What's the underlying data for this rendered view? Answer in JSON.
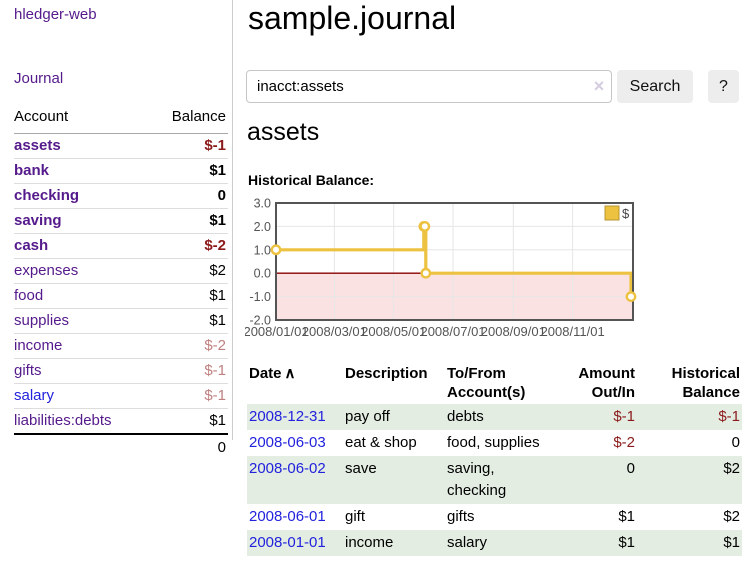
{
  "colors": {
    "purple": "#551A8B",
    "blue": "#2222DD",
    "neg": "#8B1A1A",
    "negfaded": "#C08080",
    "rowgreen": "#E3EDE2",
    "chart_gold": "#EDC240",
    "chart_gold_border": "#B89530",
    "chart_negative_fill": "#FBE2E2",
    "chart_zero_line": "#8B0000",
    "chart_grid": "#E6E6E6",
    "chart_border": "#545454",
    "chart_text": "#545454"
  },
  "sidebar": {
    "brand": "hledger-web",
    "journal_link": "Journal",
    "accounts_table": {
      "headers": {
        "account": "Account",
        "balance": "Balance"
      },
      "rows": [
        {
          "name": "assets",
          "depth": 1,
          "bold": true,
          "balance": "$-1",
          "balance_style": "neg-strong"
        },
        {
          "name": "bank",
          "depth": 2,
          "bold": true,
          "balance": "$1",
          "balance_style": "bold"
        },
        {
          "name": "checking",
          "depth": 3,
          "bold": true,
          "balance": "0",
          "balance_style": "bold"
        },
        {
          "name": "saving",
          "depth": 3,
          "bold": true,
          "balance": "$1",
          "balance_style": "bold"
        },
        {
          "name": "cash",
          "depth": 2,
          "bold": true,
          "balance": "$-2",
          "balance_style": "neg-strong"
        },
        {
          "name": "expenses",
          "depth": 1,
          "bold": false,
          "balance": "$2",
          "balance_style": "plain"
        },
        {
          "name": "food",
          "depth": 2,
          "bold": false,
          "balance": "$1",
          "balance_style": "plain"
        },
        {
          "name": "supplies",
          "depth": 2,
          "bold": false,
          "balance": "$1",
          "balance_style": "plain"
        },
        {
          "name": "income",
          "depth": 1,
          "bold": false,
          "balance": "$-2",
          "balance_style": "neg-faded"
        },
        {
          "name": "gifts",
          "depth": 2,
          "bold": false,
          "balance": "$-1",
          "balance_style": "neg-faded"
        },
        {
          "name": "salary",
          "depth": 2,
          "bold": false,
          "balance": "$-1",
          "balance_style": "neg-faded",
          "link_color": "blue"
        },
        {
          "name": "liabilities:debts",
          "depth": 1,
          "bold": false,
          "balance": "$1",
          "balance_style": "plain"
        }
      ],
      "total": "0"
    }
  },
  "main": {
    "title": "sample.journal",
    "search": {
      "value": "inacct:assets",
      "clear_icon": "×",
      "button_label": "Search",
      "help_label": "?"
    },
    "account_heading": "assets",
    "chart_heading": "Historical Balance:"
  },
  "chart_data": {
    "type": "line",
    "step": true,
    "title": "Historical Balance:",
    "series": [
      {
        "name": "$",
        "color": "#EDC240",
        "points": [
          [
            "2008-01-01",
            1
          ],
          [
            "2008-06-01",
            2
          ],
          [
            "2008-06-02",
            2
          ],
          [
            "2008-06-03",
            0
          ],
          [
            "2008-12-31",
            -1
          ]
        ]
      }
    ],
    "xrange": [
      "2008-01-01",
      "2008-12-31"
    ],
    "ylim": [
      -2,
      3
    ],
    "yticks": [
      3,
      2,
      1,
      0,
      -1,
      -2
    ],
    "ytick_labels": [
      "3.0",
      "2.0",
      "1.0",
      "0.0",
      "-1.0",
      "-2.0"
    ],
    "xticks": [
      "2008/01/01",
      "2008/03/01",
      "2008/05/01",
      "2008/07/01",
      "2008/09/01",
      "2008/11/01"
    ],
    "grid": true,
    "legend": {
      "label": "$",
      "position": "top-right"
    },
    "negative_region": {
      "from": -2,
      "to": 0,
      "color": "#FBE2E2"
    },
    "zero_line_color": "#8B0000"
  },
  "table": {
    "sort_icon": "∧",
    "headers": [
      "Date",
      "Description",
      "To/From Account(s)",
      "Amount Out/In",
      "Historical Balance"
    ],
    "rows": [
      {
        "date": "2008-12-31",
        "description": "pay off",
        "accounts": "debts",
        "amount": "$-1",
        "amount_neg": true,
        "balance": "$-1",
        "balance_neg": true
      },
      {
        "date": "2008-06-03",
        "description": "eat & shop",
        "accounts": "food, supplies",
        "amount": "$-2",
        "amount_neg": true,
        "balance": "0",
        "balance_neg": false
      },
      {
        "date": "2008-06-02",
        "description": "save",
        "accounts": "saving, checking",
        "amount": "0",
        "amount_neg": false,
        "balance": "$2",
        "balance_neg": false
      },
      {
        "date": "2008-06-01",
        "description": "gift",
        "accounts": "gifts",
        "amount": "$1",
        "amount_neg": false,
        "balance": "$2",
        "balance_neg": false
      },
      {
        "date": "2008-01-01",
        "description": "income",
        "accounts": "salary",
        "amount": "$1",
        "amount_neg": false,
        "balance": "$1",
        "balance_neg": false
      }
    ]
  }
}
